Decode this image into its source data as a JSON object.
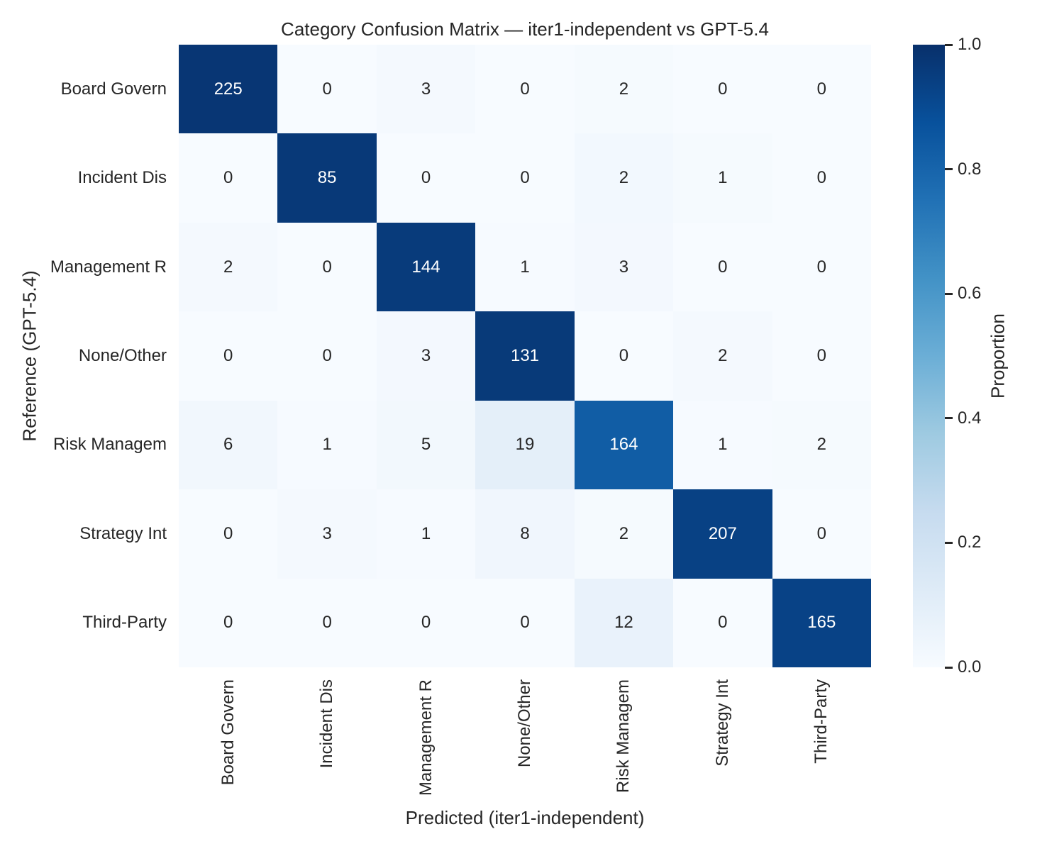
{
  "chart_data": {
    "type": "heatmap",
    "title": "Category Confusion Matrix — iter1-independent vs GPT-5.4",
    "xlabel": "Predicted (iter1-independent)",
    "ylabel": "Reference (GPT-5.4)",
    "x_categories": [
      "Board Govern",
      "Incident Dis",
      "Management R",
      "None/Other",
      "Risk Managem",
      "Strategy Int",
      "Third-Party"
    ],
    "y_categories": [
      "Board Govern",
      "Incident Dis",
      "Management R",
      "None/Other",
      "Risk Managem",
      "Strategy Int",
      "Third-Party"
    ],
    "values": [
      [
        225,
        0,
        3,
        0,
        2,
        0,
        0
      ],
      [
        0,
        85,
        0,
        0,
        2,
        1,
        0
      ],
      [
        2,
        0,
        144,
        1,
        3,
        0,
        0
      ],
      [
        0,
        0,
        3,
        131,
        0,
        2,
        0
      ],
      [
        6,
        1,
        5,
        19,
        164,
        1,
        2
      ],
      [
        0,
        3,
        1,
        8,
        2,
        207,
        0
      ],
      [
        0,
        0,
        0,
        0,
        12,
        0,
        165
      ]
    ],
    "normalization": "row-proportion",
    "color_scale": {
      "name": "Blues",
      "stops": [
        "#f7fbff",
        "#deebf7",
        "#c6dbef",
        "#9ecae1",
        "#6baed6",
        "#4292c6",
        "#2171b5",
        "#08519c",
        "#08306b"
      ]
    },
    "colorbar": {
      "label": "Proportion",
      "ticks": [
        "1.0",
        "0.8",
        "0.6",
        "0.4",
        "0.2",
        "0.0"
      ],
      "range": [
        0.0,
        1.0
      ]
    },
    "annotation_colors": {
      "light_cell_text": "#262626",
      "dark_cell_text": "#ffffff"
    },
    "grid": false,
    "legend_position": "right-colorbar"
  }
}
